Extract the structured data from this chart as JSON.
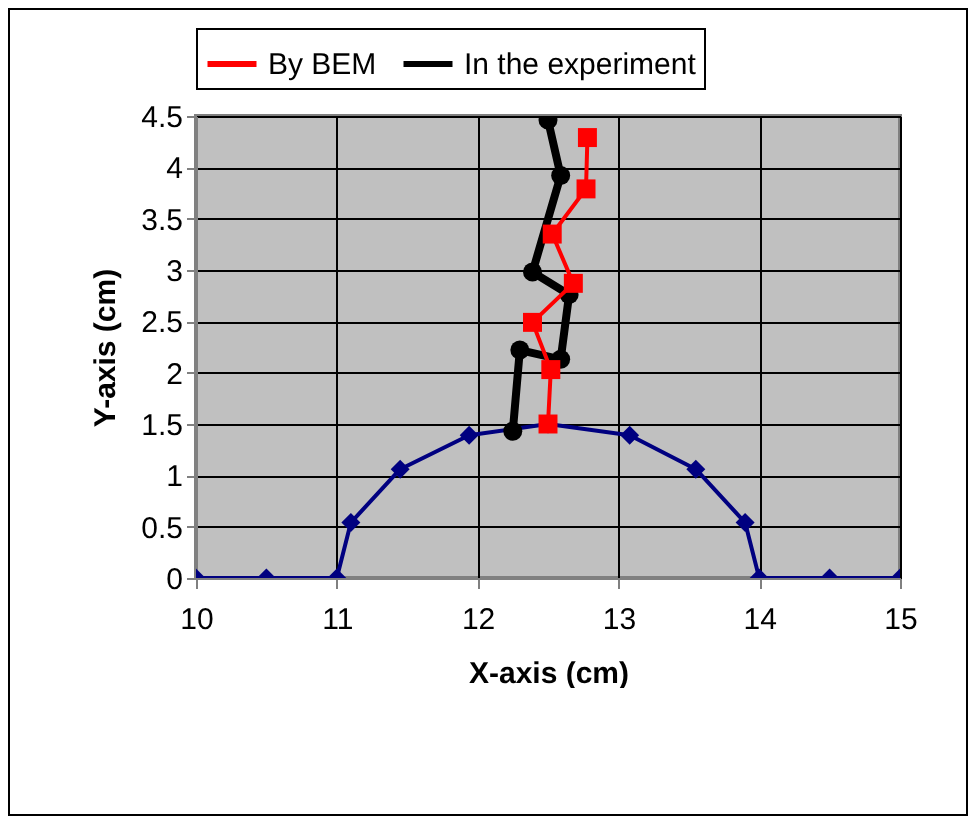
{
  "chart_data": {
    "type": "line",
    "xlabel": "X-axis (cm)",
    "ylabel": "Y-axis (cm)",
    "xlim": [
      10,
      15
    ],
    "xticks": [
      10,
      11,
      12,
      13,
      14,
      15
    ],
    "ylim": [
      0,
      4.5
    ],
    "yticks": [
      0,
      0.5,
      1,
      1.5,
      2,
      2.5,
      3,
      3.5,
      4,
      4.5
    ],
    "grid": true,
    "legend": "top",
    "series": [
      {
        "name": "By BEM",
        "color": "#ff0000",
        "marker": "square",
        "x": [
          12.5,
          12.52,
          12.39,
          12.68,
          12.53,
          12.77,
          12.78
        ],
        "values": [
          1.5,
          2.03,
          2.49,
          2.87,
          3.35,
          3.79,
          4.29
        ]
      },
      {
        "name": "In the experiment",
        "color": "#000000",
        "marker": "circle",
        "x": [
          12.25,
          12.3,
          12.59,
          12.65,
          12.39,
          12.59,
          12.5
        ],
        "values": [
          1.43,
          2.22,
          2.13,
          2.76,
          2.98,
          3.92,
          4.46
        ]
      },
      {
        "color": "#000080",
        "marker": "diamond",
        "x": [
          10,
          10.5,
          11,
          11.1,
          11.45,
          11.94,
          12.5,
          13.08,
          13.55,
          13.9,
          14,
          14.5,
          15
        ],
        "values": [
          0,
          0,
          0,
          0.54,
          1.06,
          1.39,
          1.5,
          1.39,
          1.06,
          0.54,
          0,
          0,
          0
        ]
      }
    ]
  }
}
